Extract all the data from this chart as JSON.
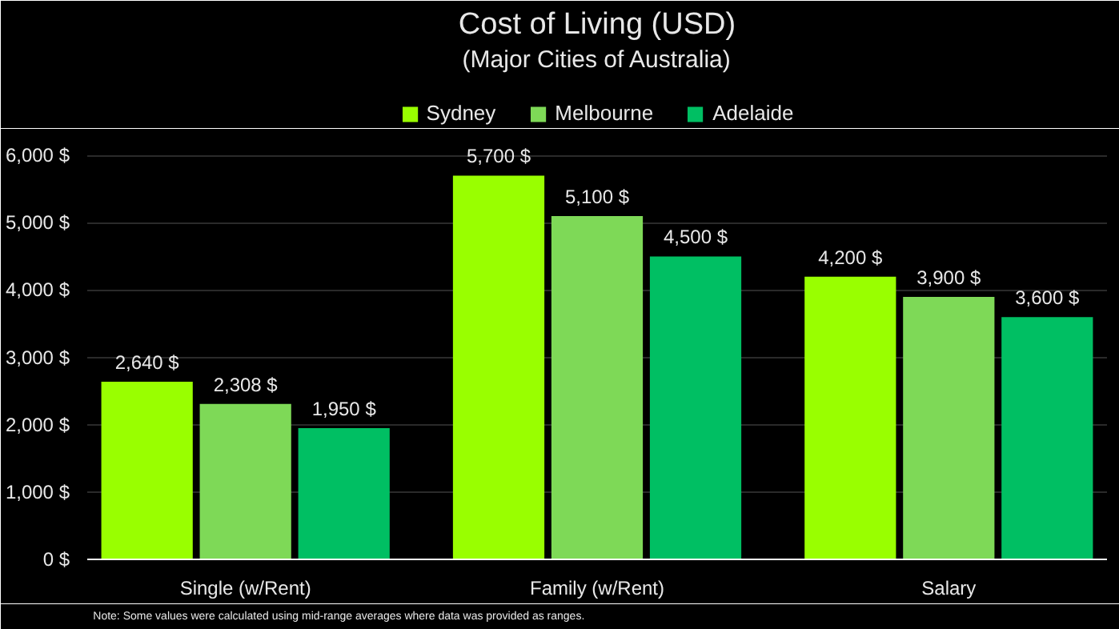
{
  "chart_data": {
    "type": "bar",
    "title": "Cost of Living (USD)",
    "subtitle": "(Major Cities of Australia)",
    "categories": [
      "Single (w/Rent)",
      "Family (w/Rent)",
      "Salary"
    ],
    "series": [
      {
        "name": "Sydney",
        "color": "#99ff00",
        "values": [
          2640,
          5700,
          4200
        ],
        "value_labels": [
          "2,640 $",
          "5,700 $",
          "4,200 $"
        ]
      },
      {
        "name": "Melbourne",
        "color": "#7ed957",
        "values": [
          2308,
          5100,
          3900
        ],
        "value_labels": [
          "2,308 $",
          "5,100 $",
          "3,900 $"
        ]
      },
      {
        "name": "Adelaide",
        "color": "#00bf63",
        "values": [
          1950,
          4500,
          3600
        ],
        "value_labels": [
          "1,950 $",
          "4,500 $",
          "3,600 $"
        ]
      }
    ],
    "ylim": [
      0,
      6300
    ],
    "yticks": [
      {
        "value": 0,
        "label": "0 $"
      },
      {
        "value": 1000,
        "label": "1,000 $"
      },
      {
        "value": 2000,
        "label": "2,000 $"
      },
      {
        "value": 3000,
        "label": "3,000 $"
      },
      {
        "value": 4000,
        "label": "4,000 $"
      },
      {
        "value": 5000,
        "label": "5,000 $"
      },
      {
        "value": 6000,
        "label": "6,000 $"
      }
    ],
    "grid": "y",
    "legend": "top",
    "annotations": [
      "Note: Some values were calculated using mid-range averages where data was provided as ranges."
    ]
  }
}
